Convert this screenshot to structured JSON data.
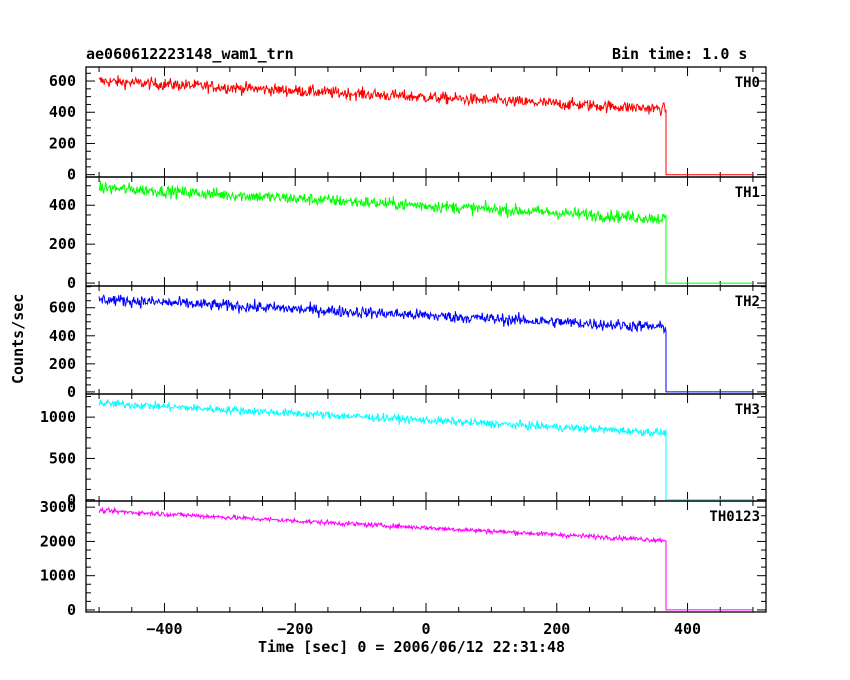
{
  "header": {
    "title": "ae060612223148_wam1_trn",
    "bin_time": "Bin time: 1.0 s"
  },
  "axes": {
    "ylabel": "Counts/sec",
    "xlabel": "Time [sec] 0 = 2006/06/12 22:31:48",
    "xlim": [
      -520,
      520
    ],
    "xticks": [
      -400,
      -200,
      0,
      200,
      400
    ]
  },
  "chart_data": {
    "type": "line",
    "x_range": [
      -500,
      500
    ],
    "step_time": 367,
    "bin_time_s": 1.0,
    "series": [
      {
        "name": "TH0",
        "color": "#ff0000",
        "ylim": [
          -15,
          690
        ],
        "yticks": [
          0,
          200,
          400,
          600
        ],
        "start_level": 600,
        "end_level": 420,
        "after_level": 0,
        "noise": 55
      },
      {
        "name": "TH1",
        "color": "#00ff00",
        "ylim": [
          -15,
          545
        ],
        "yticks": [
          0,
          200,
          400
        ],
        "start_level": 490,
        "end_level": 330,
        "after_level": 0,
        "noise": 45
      },
      {
        "name": "TH2",
        "color": "#0000ff",
        "ylim": [
          -15,
          755
        ],
        "yticks": [
          0,
          200,
          400,
          600
        ],
        "start_level": 660,
        "end_level": 460,
        "after_level": 0,
        "noise": 60
      },
      {
        "name": "TH3",
        "color": "#00ffff",
        "ylim": [
          -15,
          1280
        ],
        "yticks": [
          0,
          500,
          1000
        ],
        "start_level": 1170,
        "end_level": 810,
        "after_level": 0,
        "noise": 70
      },
      {
        "name": "TH0123",
        "color": "#ff00ff",
        "ylim": [
          -60,
          3180
        ],
        "yticks": [
          0,
          1000,
          2000,
          3000
        ],
        "start_level": 2900,
        "end_level": 2030,
        "after_level": 0,
        "noise": 100
      }
    ]
  }
}
